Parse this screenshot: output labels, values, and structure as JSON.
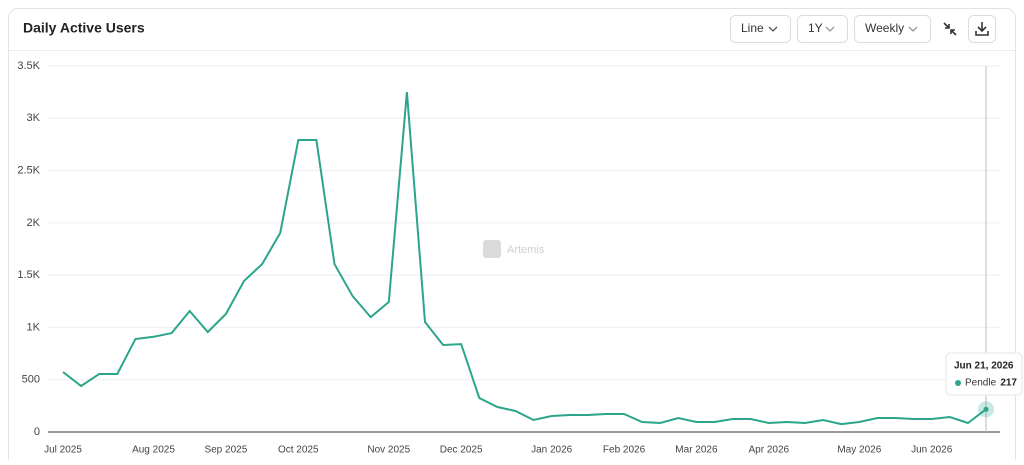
{
  "chart_data": {
    "type": "line",
    "title": "Daily Active Users",
    "controls": [
      "Line",
      "1Y",
      "Weekly"
    ],
    "watermark": "Artemis",
    "categories": [
      "Jul 2025",
      null,
      null,
      null,
      null,
      "Aug 2025",
      null,
      null,
      null,
      "Sep 2025",
      null,
      null,
      null,
      "Oct 2025",
      null,
      null,
      null,
      null,
      "Nov 2025",
      null,
      null,
      null,
      "Dec 2025",
      null,
      null,
      null,
      null,
      "Jan 2026",
      null,
      null,
      null,
      "Feb 2026",
      null,
      null,
      null,
      "Mar 2026",
      null,
      null,
      null,
      "Apr 2026",
      null,
      null,
      null,
      null,
      "May 2026",
      null,
      null,
      null,
      "Jun 2026",
      null,
      null,
      null
    ],
    "series": [
      {
        "name": "Pendle",
        "color": "#2ba58b",
        "values": [
          574,
          440,
          555,
          555,
          889,
          910,
          946,
          1157,
          956,
          1128,
          1444,
          1606,
          1903,
          2792,
          2792,
          1606,
          1300,
          1099,
          1243,
          3250,
          1052,
          832,
          841,
          325,
          239,
          201,
          115,
          153,
          163,
          163,
          172,
          172,
          96,
          86,
          134,
          96,
          96,
          124,
          124,
          86,
          96,
          86,
          115,
          76,
          96,
          134,
          134,
          124,
          124,
          143,
          86,
          217
        ]
      }
    ],
    "tooltip": {
      "date": "Jun 21, 2026"
    },
    "ylim": [
      0,
      3500
    ],
    "yticks": [
      0,
      500,
      {
        "value": 1000,
        "label": "1K"
      },
      {
        "value": 1500,
        "label": "1.5K"
      },
      {
        "value": 2000,
        "label": "2K"
      },
      {
        "value": 2500,
        "label": "2.5K"
      },
      {
        "value": 3000,
        "label": "3K"
      },
      {
        "value": 3500,
        "label": "3.5K"
      }
    ],
    "grid": true
  }
}
